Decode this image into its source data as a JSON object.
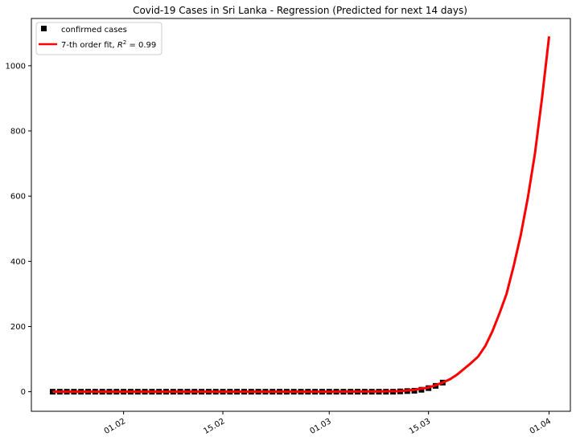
{
  "chart_data": {
    "type": "line",
    "title": "Covid-19 Cases in Sri Lanka - Regression (Predicted for next 14 days)",
    "xlabel": "",
    "ylabel": "",
    "x_axis": {
      "type": "date",
      "range": [
        "2020-01-19",
        "2020-04-04"
      ],
      "ticks": [
        {
          "date": "2020-02-01",
          "label": "01.02"
        },
        {
          "date": "2020-02-15",
          "label": "15.02"
        },
        {
          "date": "2020-03-01",
          "label": "01.03"
        },
        {
          "date": "2020-03-15",
          "label": "15.03"
        },
        {
          "date": "2020-04-01",
          "label": "01.04"
        }
      ]
    },
    "y_axis": {
      "range": [
        -60,
        1145
      ],
      "ticks": [
        0,
        200,
        400,
        600,
        800,
        1000
      ]
    },
    "grid": false,
    "legend": {
      "position": "top-left",
      "entries": [
        {
          "label": "confirmed cases",
          "series": "confirmed"
        },
        {
          "label_prefix": "7-th order fit, ",
          "label_r": "R",
          "label_sup": "2",
          "label_suffix": " = 0.99",
          "series": "fit"
        }
      ]
    },
    "series": [
      {
        "name": "confirmed cases",
        "key": "confirmed",
        "style": "markers",
        "color": "#000000",
        "points": [
          [
            "2020-01-22",
            0
          ],
          [
            "2020-01-23",
            0
          ],
          [
            "2020-01-24",
            0
          ],
          [
            "2020-01-25",
            0
          ],
          [
            "2020-01-26",
            0
          ],
          [
            "2020-01-27",
            0
          ],
          [
            "2020-01-28",
            0
          ],
          [
            "2020-01-29",
            0
          ],
          [
            "2020-01-30",
            0
          ],
          [
            "2020-01-31",
            0
          ],
          [
            "2020-02-01",
            0
          ],
          [
            "2020-02-02",
            0
          ],
          [
            "2020-02-03",
            0
          ],
          [
            "2020-02-04",
            0
          ],
          [
            "2020-02-05",
            0
          ],
          [
            "2020-02-06",
            0
          ],
          [
            "2020-02-07",
            0
          ],
          [
            "2020-02-08",
            0
          ],
          [
            "2020-02-09",
            0
          ],
          [
            "2020-02-10",
            0
          ],
          [
            "2020-02-11",
            0
          ],
          [
            "2020-02-12",
            0
          ],
          [
            "2020-02-13",
            0
          ],
          [
            "2020-02-14",
            0
          ],
          [
            "2020-02-15",
            0
          ],
          [
            "2020-02-16",
            0
          ],
          [
            "2020-02-17",
            0
          ],
          [
            "2020-02-18",
            0
          ],
          [
            "2020-02-19",
            0
          ],
          [
            "2020-02-20",
            0
          ],
          [
            "2020-02-21",
            0
          ],
          [
            "2020-02-22",
            0
          ],
          [
            "2020-02-23",
            0
          ],
          [
            "2020-02-24",
            0
          ],
          [
            "2020-02-25",
            0
          ],
          [
            "2020-02-26",
            0
          ],
          [
            "2020-02-27",
            0
          ],
          [
            "2020-02-28",
            0
          ],
          [
            "2020-02-29",
            0
          ],
          [
            "2020-03-01",
            0
          ],
          [
            "2020-03-02",
            0
          ],
          [
            "2020-03-03",
            0
          ],
          [
            "2020-03-04",
            0
          ],
          [
            "2020-03-05",
            0
          ],
          [
            "2020-03-06",
            0
          ],
          [
            "2020-03-07",
            0
          ],
          [
            "2020-03-08",
            0
          ],
          [
            "2020-03-09",
            0
          ],
          [
            "2020-03-10",
            0
          ],
          [
            "2020-03-11",
            1
          ],
          [
            "2020-03-12",
            2
          ],
          [
            "2020-03-13",
            3
          ],
          [
            "2020-03-14",
            6
          ],
          [
            "2020-03-15",
            11
          ],
          [
            "2020-03-16",
            18
          ],
          [
            "2020-03-17",
            28
          ]
        ]
      },
      {
        "name": "7-th order fit",
        "key": "fit",
        "style": "line",
        "color": "#ff0000",
        "points": [
          [
            "2020-01-22",
            0
          ],
          [
            "2020-02-01",
            0
          ],
          [
            "2020-02-15",
            0
          ],
          [
            "2020-03-01",
            0
          ],
          [
            "2020-03-08",
            1
          ],
          [
            "2020-03-11",
            2
          ],
          [
            "2020-03-13",
            6
          ],
          [
            "2020-03-15",
            13
          ],
          [
            "2020-03-16",
            20
          ],
          [
            "2020-03-17",
            28
          ],
          [
            "2020-03-18",
            38
          ],
          [
            "2020-03-19",
            52
          ],
          [
            "2020-03-20",
            70
          ],
          [
            "2020-03-21",
            88
          ],
          [
            "2020-03-22",
            108
          ],
          [
            "2020-03-23",
            140
          ],
          [
            "2020-03-24",
            185
          ],
          [
            "2020-03-25",
            240
          ],
          [
            "2020-03-26",
            300
          ],
          [
            "2020-03-27",
            385
          ],
          [
            "2020-03-28",
            480
          ],
          [
            "2020-03-29",
            595
          ],
          [
            "2020-03-30",
            730
          ],
          [
            "2020-03-31",
            900
          ],
          [
            "2020-04-01",
            1090
          ]
        ]
      }
    ]
  }
}
